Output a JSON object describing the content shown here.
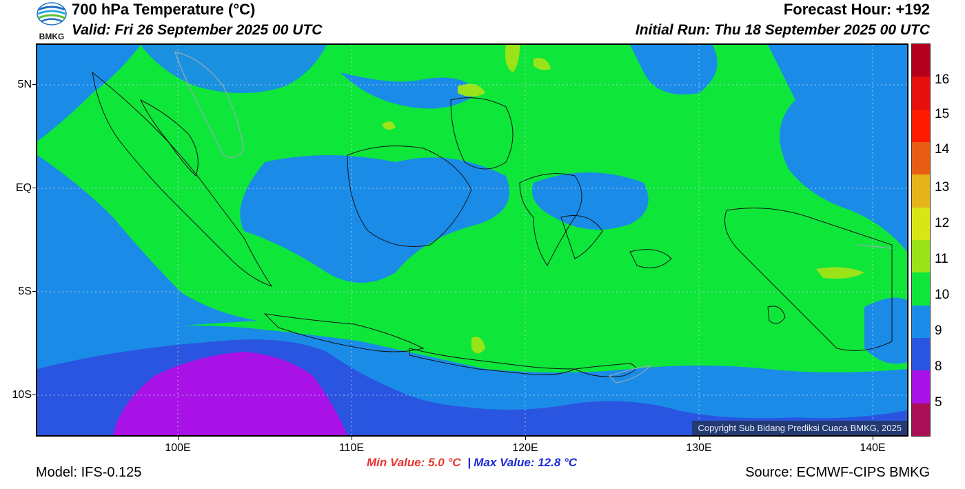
{
  "header": {
    "title": "700 hPa Temperature (°C)",
    "valid": "Valid: Fri 26 September 2025 00 UTC",
    "forecast_hour": "Forecast Hour: +192",
    "initial_run": "Initial Run: Thu 18 September 2025 00 UTC"
  },
  "logo": {
    "text": "BMKG"
  },
  "map": {
    "lat_labels": [
      "5N",
      "EQ",
      "5S",
      "10S"
    ],
    "lon_labels": [
      "100E",
      "110E",
      "120E",
      "130E",
      "140E"
    ],
    "copyright": "Copyright Sub Bidang Prediksi Cuaca BMKG, 2025"
  },
  "colorbar": {
    "labels": [
      "16",
      "15",
      "14",
      "13",
      "12",
      "11",
      "10",
      "9",
      "8",
      "5"
    ],
    "colors": [
      "#b5001d",
      "#e80f0f",
      "#ff1a00",
      "#e85d13",
      "#e6b41a",
      "#d7e617",
      "#9be319",
      "#0ee63a",
      "#1a8ce8",
      "#2a55e0",
      "#a812e6",
      "#a80f57"
    ]
  },
  "footer": {
    "min_value": "Min Value: 5.0 °C",
    "separator": "|",
    "max_value": "Max Value: 12.8 °C",
    "model": "Model: IFS-0.125",
    "source": "Source: ECMWF-CIPS BMKG"
  }
}
